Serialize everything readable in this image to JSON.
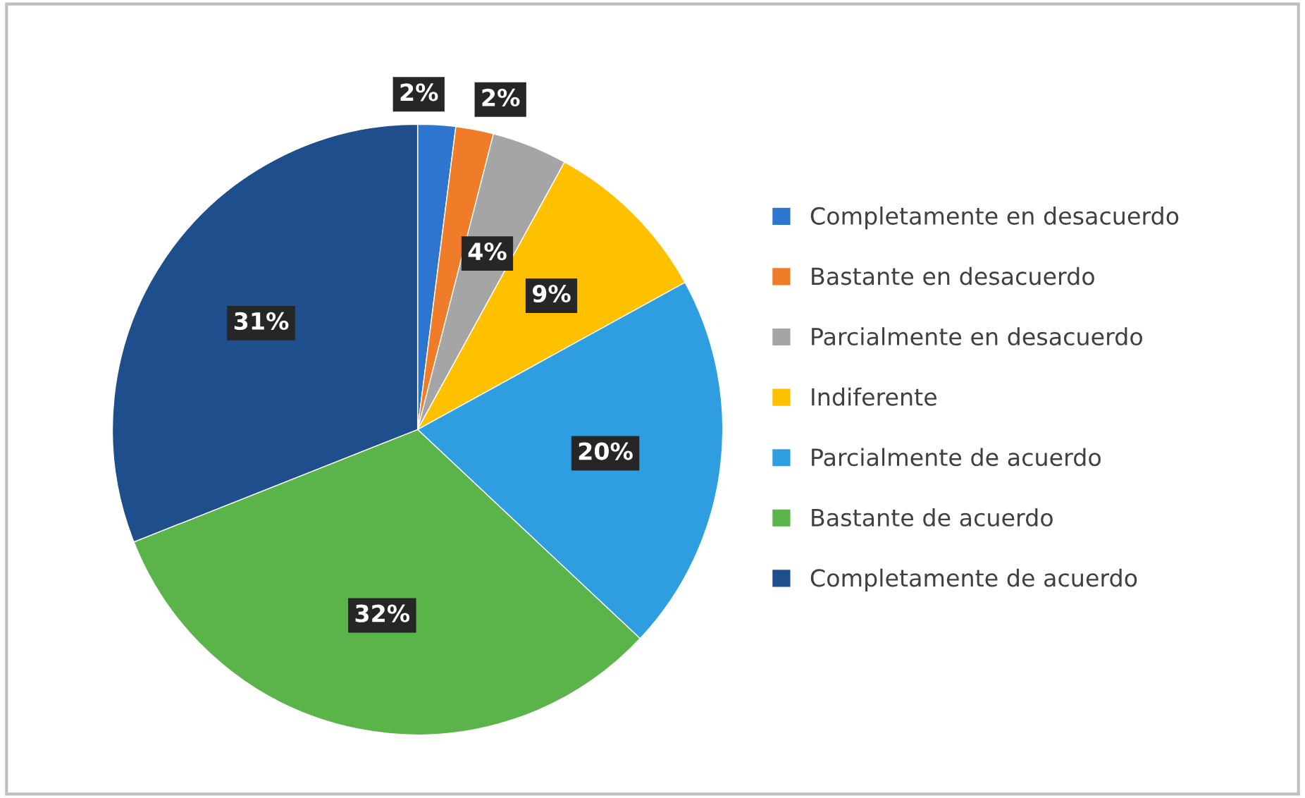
{
  "chart_data": {
    "type": "pie",
    "categories": [
      "Completamente en desacuerdo",
      "Bastante en desacuerdo",
      "Parcialmente en desacuerdo",
      "Indiferente",
      "Parcialmente de acuerdo",
      "Bastante de acuerdo",
      "Completamente de acuerdo"
    ],
    "values": [
      2,
      2,
      4,
      9,
      20,
      32,
      31
    ],
    "value_labels": [
      "2%",
      "2%",
      "4%",
      "9%",
      "20%",
      "32%",
      "31%"
    ],
    "colors": [
      "#2e75d0",
      "#f07b29",
      "#a5a5a5",
      "#ffc000",
      "#2f9ee0",
      "#5bb44a",
      "#1f4e8c"
    ],
    "legend": "right"
  }
}
